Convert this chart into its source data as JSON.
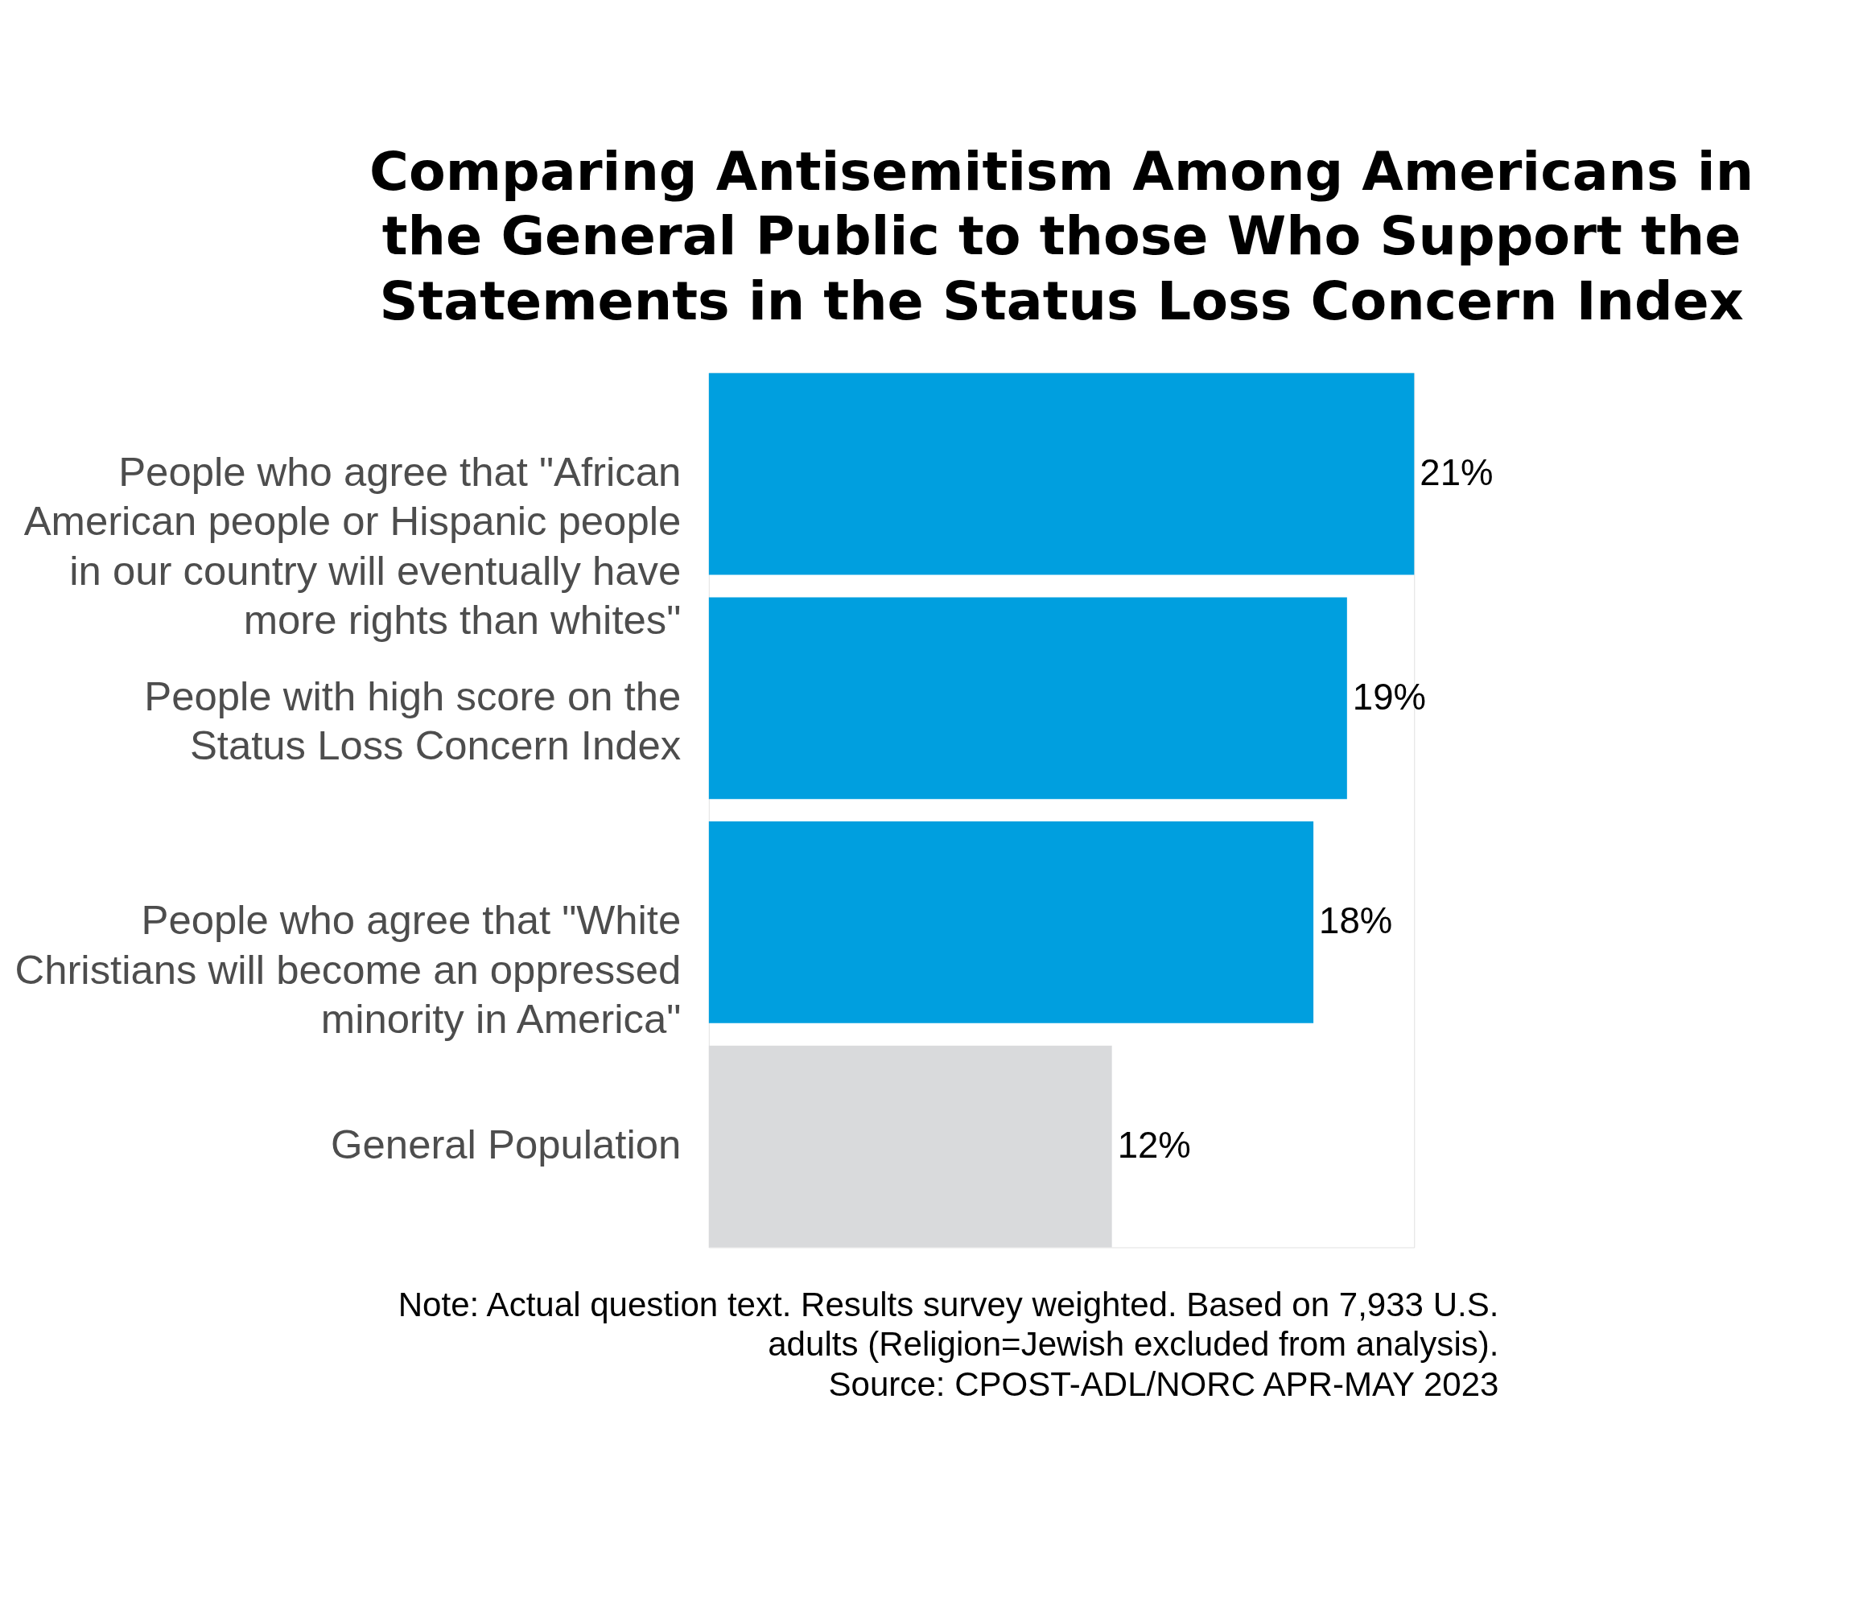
{
  "chart_data": {
    "type": "bar",
    "orientation": "horizontal",
    "title": [
      "Comparing Antisemitism Among Americans in",
      "the General Public to those Who Support the",
      "Statements in the Status Loss Concern Index"
    ],
    "categories": [
      "People who agree that \"African American people or Hispanic people in our country will eventually have more rights than whites\"",
      "People with high score on the Status Loss Concern Index",
      "People who agree that \"White Christians will become an oppressed minority in America\"",
      "General Population"
    ],
    "values": [
      21,
      19,
      18,
      12
    ],
    "colors": [
      "#009fdf",
      "#009fdf",
      "#009fdf",
      "#d9dadc"
    ],
    "value_labels": [
      "21%",
      "19%",
      "18%",
      "12%"
    ],
    "annotations": [
      "Note: Actual question text. Results survey weighted. Based on 7,933 U.S. adults (Religion=Jewish excluded from analysis).",
      "Source: CPOST-ADL/NORC APR-MAY 2023"
    ]
  }
}
